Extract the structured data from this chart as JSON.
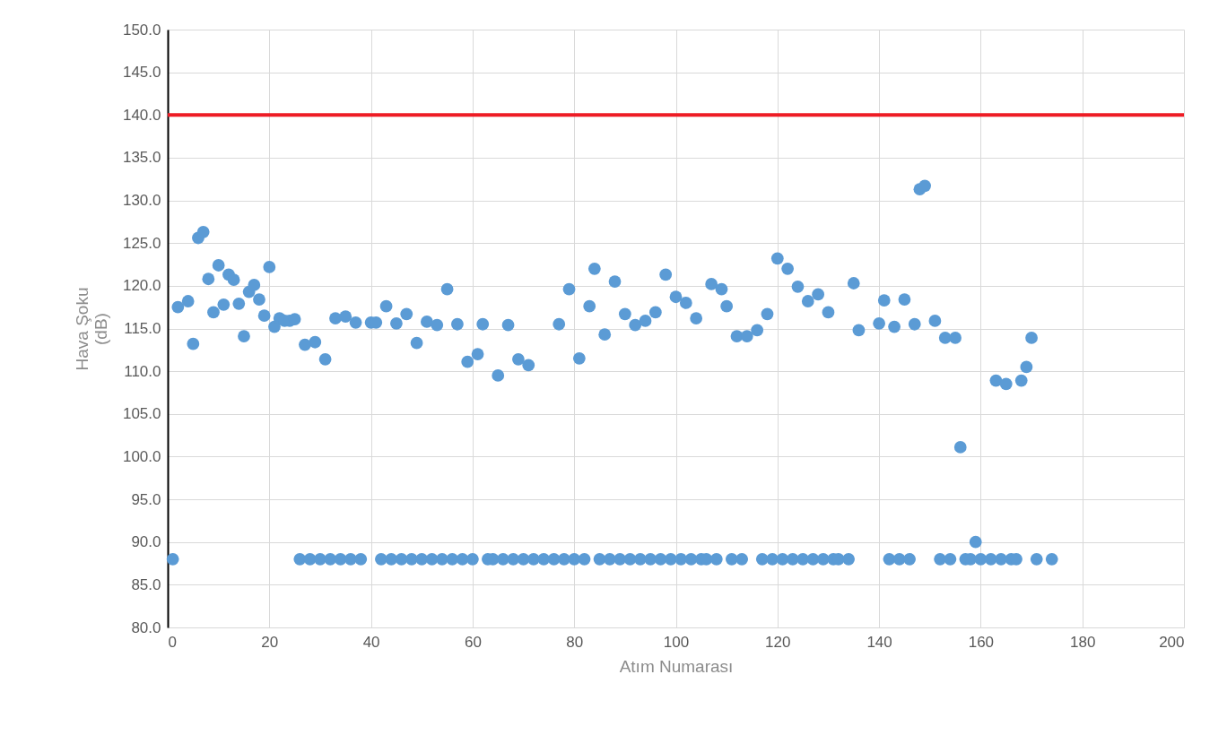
{
  "chart_data": {
    "type": "scatter",
    "xlabel": "Atım Numarası",
    "ylabel": "Hava Şoku\n(dB)",
    "x": [
      1,
      2,
      4,
      5,
      6,
      7,
      8,
      9,
      10,
      11,
      12,
      13,
      14,
      15,
      16,
      17,
      18,
      19,
      20,
      21,
      22,
      23,
      24,
      25,
      26,
      27,
      28,
      29,
      30,
      31,
      32,
      33,
      34,
      35,
      36,
      37,
      38,
      40,
      41,
      42,
      43,
      44,
      45,
      46,
      47,
      48,
      49,
      50,
      51,
      52,
      53,
      54,
      55,
      56,
      57,
      58,
      59,
      60,
      61,
      62,
      63,
      64,
      65,
      66,
      67,
      68,
      69,
      70,
      71,
      72,
      74,
      76,
      77,
      78,
      79,
      80,
      81,
      82,
      83,
      84,
      85,
      86,
      87,
      88,
      89,
      90,
      91,
      92,
      93,
      94,
      95,
      96,
      97,
      98,
      99,
      100,
      101,
      102,
      103,
      104,
      105,
      106,
      107,
      108,
      109,
      110,
      111,
      112,
      113,
      114,
      116,
      117,
      118,
      119,
      120,
      121,
      122,
      123,
      124,
      125,
      126,
      127,
      128,
      129,
      130,
      131,
      132,
      134,
      135,
      136,
      140,
      141,
      142,
      143,
      144,
      145,
      146,
      147,
      148,
      149,
      151,
      152,
      153,
      154,
      155,
      156,
      157,
      158,
      159,
      160,
      162,
      163,
      164,
      165,
      166,
      167,
      168,
      169,
      170,
      171,
      174
    ],
    "series": [
      {
        "color": "#5b9bd5",
        "values": [
          88,
          117.5,
          118.2,
          113.2,
          125.6,
          126.3,
          120.8,
          116.9,
          122.4,
          117.8,
          121.3,
          120.7,
          117.9,
          114.1,
          119.3,
          120.1,
          118.4,
          116.5,
          122.2,
          115.2,
          116.2,
          115.9,
          115.9,
          116.1,
          88,
          113.1,
          88,
          113.4,
          88,
          111.4,
          88,
          116.2,
          88,
          116.4,
          88,
          115.7,
          88,
          115.7,
          115.7,
          88,
          117.6,
          88,
          115.6,
          88,
          116.7,
          88,
          113.3,
          88,
          115.8,
          88,
          115.4,
          88,
          119.6,
          88,
          115.5,
          88,
          111.1,
          88,
          112.0,
          115.5,
          88,
          88,
          109.5,
          88,
          115.4,
          88,
          111.4,
          88,
          110.7,
          88,
          88,
          88,
          115.5,
          88,
          119.6,
          88,
          111.5,
          88,
          117.6,
          122.0,
          88,
          114.3,
          88,
          120.5,
          88,
          116.7,
          88,
          115.4,
          88,
          115.9,
          88,
          116.9,
          88,
          121.3,
          88,
          118.7,
          88,
          118.0,
          88,
          116.2,
          88,
          88,
          120.2,
          88,
          119.6,
          117.6,
          88,
          114.1,
          88,
          114.1,
          114.8,
          88,
          116.7,
          88,
          123.2,
          88,
          122.0,
          88,
          119.9,
          88,
          118.2,
          88,
          119.0,
          88,
          116.9,
          88,
          88,
          88,
          120.3,
          114.8,
          115.6,
          118.3,
          88,
          115.2,
          88,
          118.4,
          88,
          115.5,
          131.3,
          131.7,
          115.9,
          88,
          113.9,
          88,
          113.9,
          101.1,
          88,
          88,
          90.0,
          88,
          88,
          108.9,
          88,
          108.5,
          88,
          88,
          108.9,
          110.5,
          113.9,
          88,
          88
        ]
      }
    ],
    "xlim": [
      0,
      200
    ],
    "xticks": [
      0,
      20,
      40,
      60,
      80,
      100,
      120,
      140,
      160,
      180,
      200
    ],
    "ylim": [
      80,
      150
    ],
    "yticks": [
      {
        "value": 80,
        "label": "80.0"
      },
      {
        "value": 85,
        "label": "85.0"
      },
      {
        "value": 90,
        "label": "90.0"
      },
      {
        "value": 95,
        "label": "95.0"
      },
      {
        "value": 100,
        "label": "100.0"
      },
      {
        "value": 105,
        "label": "105.0"
      },
      {
        "value": 110,
        "label": "110.0"
      },
      {
        "value": 115,
        "label": "115.0"
      },
      {
        "value": 120,
        "label": "120.0"
      },
      {
        "value": 125,
        "label": "125.0"
      },
      {
        "value": 130,
        "label": "130.0"
      },
      {
        "value": 135,
        "label": "135.0"
      },
      {
        "value": 140,
        "label": "140.0"
      },
      {
        "value": 145,
        "label": "145.0"
      },
      {
        "value": 150,
        "label": "150.0"
      }
    ],
    "ref_lines": [
      {
        "axis": "y",
        "value": 140,
        "color": "#ee1c25"
      }
    ],
    "grid": true,
    "marker": "circle"
  }
}
